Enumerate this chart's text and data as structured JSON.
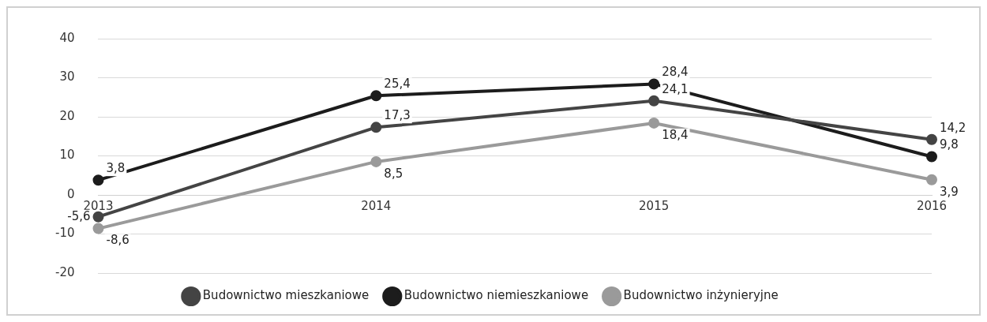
{
  "chart_data": {
    "type": "line",
    "categories": [
      "2013",
      "2014",
      "2015",
      "2016"
    ],
    "series": [
      {
        "name": "Budownictwo mieszkaniowe",
        "color": "#444444",
        "values": [
          -5.6,
          17.3,
          24.1,
          14.2
        ],
        "value_labels": [
          "-5,6",
          "17,3",
          "24,1",
          "14,2"
        ]
      },
      {
        "name": "Budownictwo niemieszkaniowe",
        "color": "#1c1c1c",
        "values": [
          3.8,
          25.4,
          28.4,
          9.8
        ],
        "value_labels": [
          "3,8",
          "25,4",
          "28,4",
          "9,8"
        ]
      },
      {
        "name": "Budownictwo inżynieryjne",
        "color": "#9a9a9a",
        "values": [
          -8.6,
          8.5,
          18.4,
          3.9
        ],
        "value_labels": [
          "-8,6",
          "8,5",
          "18,4",
          "3,9"
        ]
      }
    ],
    "ylim": [
      -20,
      40
    ],
    "yticks": [
      -20,
      -10,
      0,
      10,
      20,
      30,
      40
    ],
    "grid": "y",
    "legend": "bottom",
    "marker": "circle",
    "line_style": "solid"
  }
}
